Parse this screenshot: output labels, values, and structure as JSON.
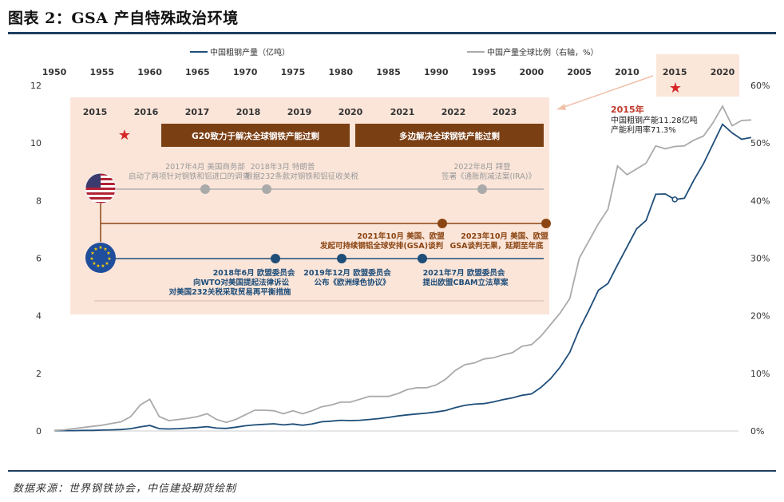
{
  "figure": {
    "title": "图表 2：GSA 产自特殊政治环境",
    "source": "数据来源：世界钢铁协会，中信建投期货绘制"
  },
  "colors": {
    "steel_line": "#1f4e79",
    "share_line": "#aaaaaa",
    "overlay_bg": "#fbe3d6",
    "bar_brown": "#7b3f14",
    "eu_blue": "#1f4e79",
    "red_star": "#d62728"
  },
  "chart_data": {
    "type": "line",
    "title": "",
    "x": [
      1950,
      1951,
      1952,
      1953,
      1954,
      1955,
      1956,
      1957,
      1958,
      1959,
      1960,
      1961,
      1962,
      1963,
      1964,
      1965,
      1966,
      1967,
      1968,
      1969,
      1970,
      1971,
      1972,
      1973,
      1974,
      1975,
      1976,
      1977,
      1978,
      1979,
      1980,
      1981,
      1982,
      1983,
      1984,
      1985,
      1986,
      1987,
      1988,
      1989,
      1990,
      1991,
      1992,
      1993,
      1994,
      1995,
      1996,
      1997,
      1998,
      1999,
      2000,
      2001,
      2002,
      2003,
      2004,
      2005,
      2006,
      2007,
      2008,
      2009,
      2010,
      2011,
      2012,
      2013,
      2014,
      2015,
      2016,
      2017,
      2018,
      2019,
      2020,
      2021,
      2022,
      2023
    ],
    "x_ticks": [
      "1950",
      "1955",
      "1960",
      "1965",
      "1970",
      "1975",
      "1980",
      "1985",
      "1990",
      "1995",
      "2000",
      "2005",
      "2010",
      "2015",
      "2020"
    ],
    "y_left": {
      "ylim": [
        0,
        12
      ],
      "ticks": [
        "0",
        "2",
        "4",
        "6",
        "8",
        "10",
        "12"
      ]
    },
    "y_right": {
      "ylim": [
        0,
        0.6
      ],
      "ticks": [
        "0%",
        "10%",
        "20%",
        "30%",
        "40%",
        "50%",
        "60%"
      ]
    },
    "series": [
      {
        "name": "中国粗钢产量（亿吨）",
        "axis": "left",
        "values": [
          0.01,
          0.01,
          0.01,
          0.02,
          0.02,
          0.03,
          0.04,
          0.05,
          0.08,
          0.14,
          0.19,
          0.08,
          0.07,
          0.08,
          0.1,
          0.12,
          0.15,
          0.1,
          0.09,
          0.13,
          0.18,
          0.21,
          0.23,
          0.25,
          0.21,
          0.24,
          0.2,
          0.24,
          0.32,
          0.34,
          0.37,
          0.36,
          0.37,
          0.4,
          0.43,
          0.47,
          0.52,
          0.56,
          0.59,
          0.62,
          0.66,
          0.71,
          0.81,
          0.89,
          0.93,
          0.95,
          1.01,
          1.09,
          1.15,
          1.24,
          1.29,
          1.52,
          1.82,
          2.22,
          2.73,
          3.53,
          4.19,
          4.89,
          5.12,
          5.77,
          6.39,
          7.02,
          7.31,
          8.22,
          8.23,
          8.04,
          8.08,
          8.71,
          9.28,
          9.96,
          10.65,
          10.35,
          10.13,
          10.19
        ]
      },
      {
        "name": "中国产量全球比例（右轴，%）",
        "axis": "right",
        "values": [
          0.001,
          0.002,
          0.004,
          0.006,
          0.008,
          0.01,
          0.013,
          0.016,
          0.025,
          0.045,
          0.055,
          0.025,
          0.018,
          0.02,
          0.022,
          0.025,
          0.03,
          0.02,
          0.015,
          0.02,
          0.028,
          0.036,
          0.036,
          0.035,
          0.03,
          0.035,
          0.03,
          0.035,
          0.042,
          0.045,
          0.05,
          0.05,
          0.055,
          0.06,
          0.06,
          0.06,
          0.065,
          0.072,
          0.075,
          0.075,
          0.08,
          0.09,
          0.105,
          0.115,
          0.118,
          0.125,
          0.127,
          0.132,
          0.136,
          0.147,
          0.15,
          0.165,
          0.185,
          0.205,
          0.23,
          0.3,
          0.33,
          0.36,
          0.385,
          0.46,
          0.445,
          0.455,
          0.465,
          0.495,
          0.49,
          0.494,
          0.495,
          0.505,
          0.512,
          0.535,
          0.564,
          0.53,
          0.539,
          0.54
        ]
      }
    ],
    "annotations": [
      {
        "text": "2015年",
        "x": 2015
      },
      {
        "text": "中国粗钢产能11.28亿吨",
        "x": 2015
      },
      {
        "text": "产能利用率71.3%",
        "x": 2015
      }
    ]
  },
  "timeline": {
    "years": [
      "2015",
      "2016",
      "2017",
      "2018",
      "2019",
      "2020",
      "2021",
      "2022",
      "2023"
    ],
    "bar1": "G20致力于解决全球钢铁产能过剩",
    "bar2": "多边解决全球钢铁产能过剩",
    "us_note1_line1": "2017年4月 美国商务部",
    "us_note1_line2": "启动了两项针对钢铁和铝进口的调查",
    "us_note2_line1": "2018年3月 特朗普",
    "us_note2_line2": "根据232条款对钢铁和铝征收关税",
    "us_note3_line1": "2022年8月 拜登",
    "us_note3_line2": "签署《通胀削减法案(IRA)》",
    "gsa_note1_line1": "2021年10月 美国、欧盟",
    "gsa_note1_line2": "发起可持续钢铝全球安排(GSA)谈判",
    "gsa_note2_line1": "2023年10月 美国、欧盟",
    "gsa_note2_line2": "GSA谈判无果，延期至年底",
    "eu_note1_line1": "2018年6月 欧盟委员会",
    "eu_note1_line2": "向WTO对美国提起法律诉讼",
    "eu_note1_line3": "对美国232关税采取贸易再平衡措施",
    "eu_note2_line1": "2019年12月 欧盟委员会",
    "eu_note2_line2": "公布《欧洲绿色协议》",
    "eu_note3_line1": "2021年7月 欧盟委员会",
    "eu_note3_line2": "提出欧盟CBAM立法草案"
  }
}
